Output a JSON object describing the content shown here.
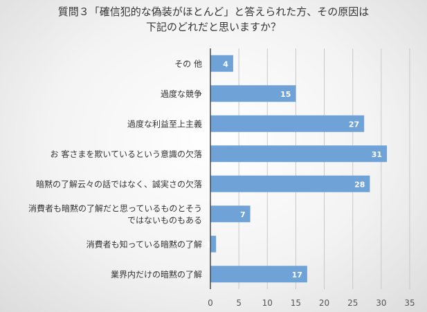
{
  "chart_data": {
    "type": "bar",
    "orientation": "horizontal",
    "title": [
      "質問３「確信犯的な偽装がほとんど」と答えられた方、その原因は",
      "下記のどれだと思いますか？"
    ],
    "categories": [
      [
        "その 他"
      ],
      [
        "過度な競争"
      ],
      [
        "過度な利益至上主義"
      ],
      [
        "お 客さまを欺いているという意識の欠落"
      ],
      [
        "暗黙の了解云々の話ではなく、誠実さの欠落"
      ],
      [
        "消費者も暗黙の了解だと思っているものとそう",
        "ではないものもある"
      ],
      [
        "消費者も知っている暗黙の了解"
      ],
      [
        "業界内だけの暗黙の了解"
      ]
    ],
    "values": [
      4,
      15,
      27,
      31,
      28,
      7,
      1,
      17
    ],
    "xlim": [
      0,
      35
    ],
    "xticks": [
      0,
      5,
      10,
      15,
      20,
      25,
      30,
      35
    ],
    "xlabel": "",
    "ylabel": "",
    "grid": "vertical",
    "legend": "none",
    "bar_color": "#6fa3d8",
    "data_label_color": "#ffffff"
  }
}
